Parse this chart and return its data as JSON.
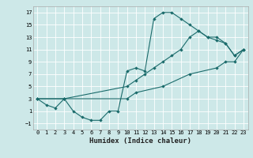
{
  "xlabel": "Humidex (Indice chaleur)",
  "bg_color": "#cde8e8",
  "line_color": "#1a6b6b",
  "grid_color": "#ffffff",
  "xlim": [
    -0.5,
    23.5
  ],
  "ylim": [
    -2.0,
    18.0
  ],
  "xticks": [
    0,
    1,
    2,
    3,
    4,
    5,
    6,
    7,
    8,
    9,
    10,
    11,
    12,
    13,
    14,
    15,
    16,
    17,
    18,
    19,
    20,
    21,
    22,
    23
  ],
  "yticks": [
    -1,
    1,
    3,
    5,
    7,
    9,
    11,
    13,
    15,
    17
  ],
  "curve1_x": [
    0,
    1,
    2,
    3,
    4,
    5,
    6,
    7,
    8,
    9,
    10,
    11,
    12,
    13,
    14,
    15,
    16,
    17,
    18,
    19,
    20,
    21,
    22,
    23
  ],
  "curve1_y": [
    3,
    2,
    1.5,
    3,
    1,
    0,
    -0.5,
    -0.5,
    1,
    1,
    7.5,
    8,
    7.5,
    16,
    17,
    17,
    16,
    15,
    14,
    13,
    12.5,
    12,
    10,
    11
  ],
  "curve2_x": [
    0,
    3,
    10,
    11,
    12,
    13,
    14,
    15,
    16,
    17,
    18,
    19,
    20,
    21,
    22,
    23
  ],
  "curve2_y": [
    3,
    3,
    5,
    6,
    7,
    8,
    9,
    10,
    11,
    13,
    14,
    13,
    13,
    12,
    10,
    11
  ],
  "curve3_x": [
    0,
    3,
    10,
    11,
    14,
    17,
    20,
    21,
    22,
    23
  ],
  "curve3_y": [
    3,
    3,
    3,
    4,
    5,
    7,
    8,
    9,
    9,
    11
  ]
}
